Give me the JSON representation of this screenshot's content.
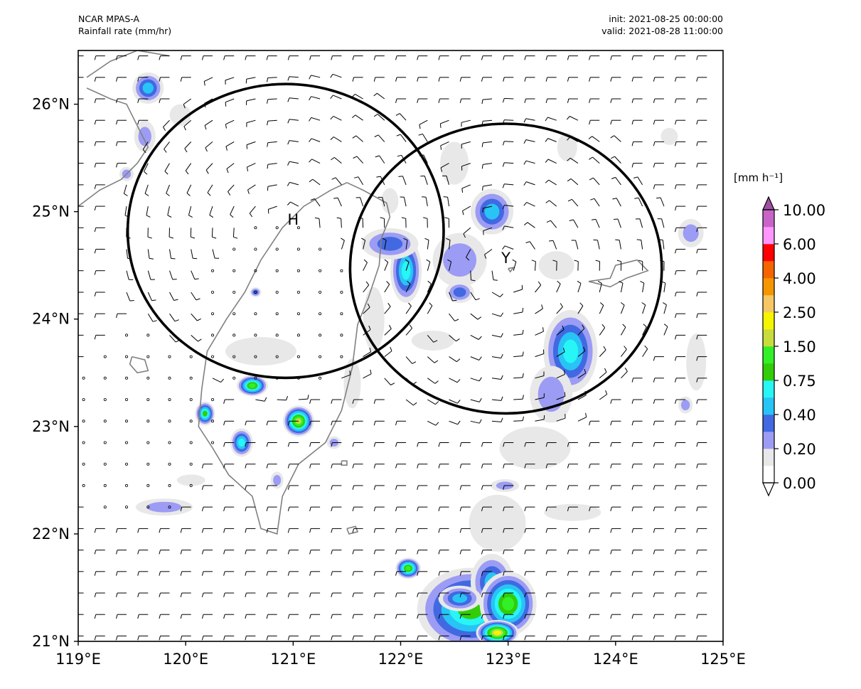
{
  "header": {
    "model": "NCAR MPAS-A",
    "variable": "Rainfall rate (mm/hr)",
    "init": "init: 2021-08-25 00:00:00",
    "valid": "valid: 2021-08-28 11:00:00"
  },
  "axes": {
    "lon_min": 119,
    "lon_max": 125,
    "lat_min": 21,
    "lat_max": 26.5,
    "x_ticks": [
      "119°E",
      "120°E",
      "121°E",
      "122°E",
      "123°E",
      "124°E",
      "125°E"
    ],
    "y_ticks": [
      "21°N",
      "22°N",
      "23°N",
      "24°N",
      "25°N",
      "26°N"
    ]
  },
  "colorbar": {
    "title": "[mm h⁻¹]",
    "labels": [
      "0.00",
      "0.20",
      "0.40",
      "0.75",
      "1.50",
      "2.50",
      "4.00",
      "6.00",
      "10.00"
    ],
    "bounds": [
      0.0,
      0.1,
      0.2,
      0.3,
      0.4,
      0.5,
      0.75,
      1.0,
      1.5,
      2.0,
      2.5,
      3.0,
      4.0,
      5.0,
      6.0,
      8.0,
      10.0
    ],
    "colors": [
      "#ffffff",
      "#e8e8e8",
      "#9c9cf5",
      "#4169e1",
      "#28c4f5",
      "#28f5f5",
      "#32cd08",
      "#32f028",
      "#c8dc3c",
      "#f5f500",
      "#f5c864",
      "#f59600",
      "#f56400",
      "#ff0000",
      "#ff96ff",
      "#c864c8"
    ],
    "over_color": "#a050a0"
  },
  "annotations": [
    {
      "label": "H",
      "lon": 121.0,
      "lat": 24.88
    },
    {
      "label": "Y",
      "lon": 122.98,
      "lat": 24.52
    }
  ],
  "circles": [
    {
      "center_lon": 120.93,
      "center_lat": 24.82,
      "radius_deg": 1.47
    },
    {
      "center_lon": 122.98,
      "center_lat": 24.47,
      "radius_deg": 1.45
    }
  ],
  "colors": {
    "coastline": "#808080",
    "circle": "#000000",
    "wind": "#000000"
  }
}
